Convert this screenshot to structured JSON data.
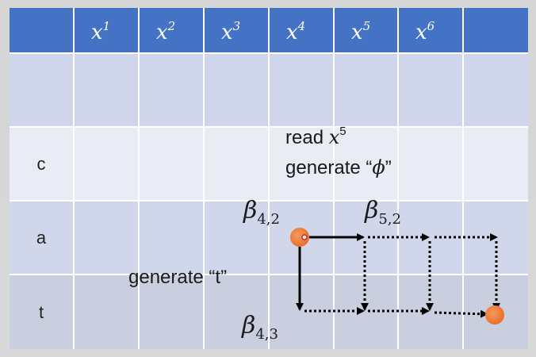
{
  "header": {
    "columns": [
      {
        "base": "x",
        "sup": "1"
      },
      {
        "base": "x",
        "sup": "2"
      },
      {
        "base": "x",
        "sup": "3"
      },
      {
        "base": "x",
        "sup": "4"
      },
      {
        "base": "x",
        "sup": "5"
      },
      {
        "base": "x",
        "sup": "6"
      }
    ]
  },
  "rows": [
    {
      "label": ""
    },
    {
      "label": "c"
    },
    {
      "label": "a"
    },
    {
      "label": "t"
    }
  ],
  "notes": {
    "read_prefix": "read ",
    "read_base": "x",
    "read_sup": "5",
    "generate_phi_prefix": "generate “",
    "generate_phi_symbol": "ϕ",
    "generate_phi_suffix": "”",
    "generate_t": "generate “t”"
  },
  "betas": {
    "b42": {
      "base": "β",
      "sub": "4,2"
    },
    "b52": {
      "base": "β",
      "sub": "5,2"
    },
    "b43": {
      "base": "β",
      "sub": "4,3"
    }
  },
  "colors": {
    "header": "#4472c4",
    "row_dark": "#cfd5ea",
    "row_light": "#e9ebf5",
    "node": "#ed7d31",
    "arrow": "#000000"
  }
}
